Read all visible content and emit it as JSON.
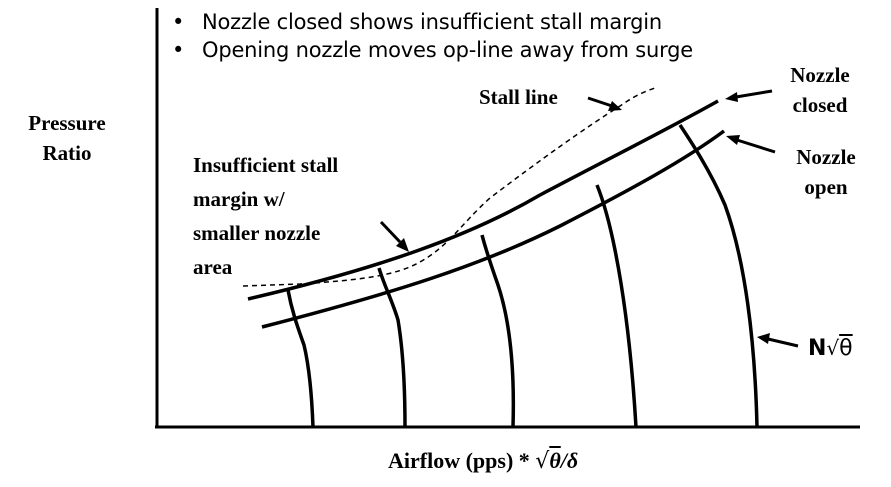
{
  "bullets": [
    "Nozzle closed shows insufficient stall margin",
    "Opening nozzle moves op-line away from surge"
  ],
  "labels": {
    "y_axis_line1": "Pressure",
    "y_axis_line2": "Ratio",
    "x_axis_prefix": "Airflow (pps) * ",
    "x_axis_radical": "√",
    "x_axis_theta": "θ",
    "x_axis_suffix": "/δ",
    "stall_line": "Stall line",
    "nozzle_closed_1": "Nozzle",
    "nozzle_closed_2": "closed",
    "nozzle_open_1": "Nozzle",
    "nozzle_open_2": "open",
    "insufficient_1": "Insufficient stall",
    "insufficient_2": "margin w/",
    "insufficient_3": "smaller nozzle",
    "insufficient_4": "area",
    "speed_N": "N",
    "speed_radical": "√",
    "speed_theta": "θ"
  }
}
